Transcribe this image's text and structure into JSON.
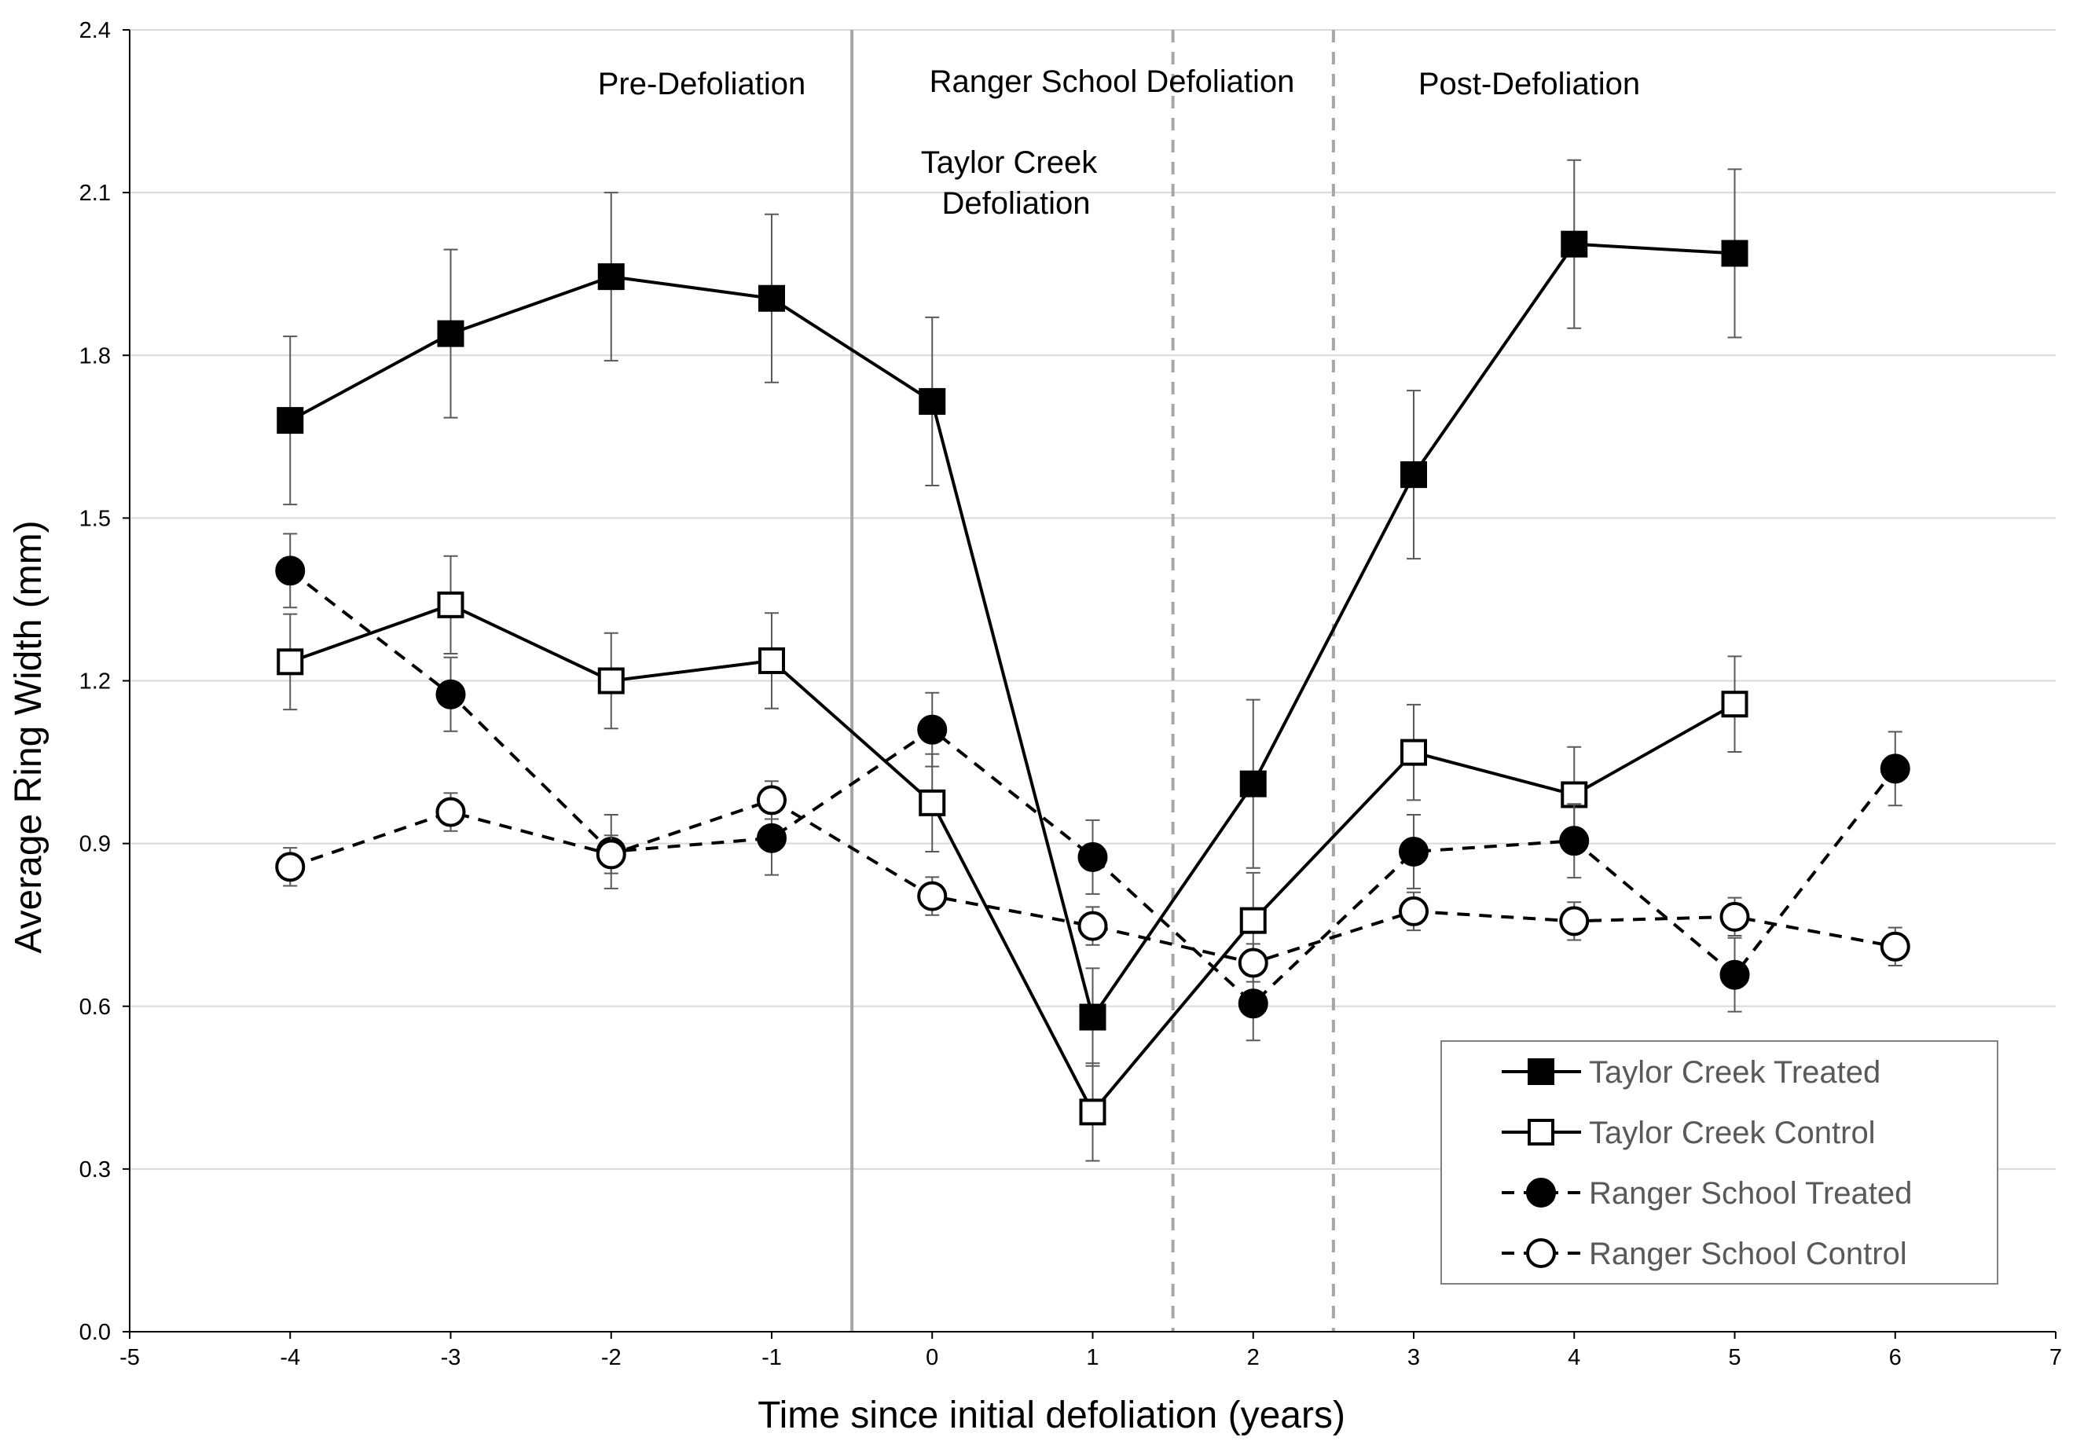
{
  "chart_data": {
    "type": "line",
    "xlabel": "Time since initial defoliation (years)",
    "ylabel": "Average Ring Width (mm)",
    "xlim": [
      -5,
      7
    ],
    "ylim": [
      0,
      2.4
    ],
    "xticks": [
      -5,
      -4,
      -3,
      -2,
      -1,
      0,
      1,
      2,
      3,
      4,
      5,
      6,
      7
    ],
    "yticks": [
      0.0,
      0.3,
      0.6,
      0.9,
      1.2,
      1.5,
      1.8,
      2.1,
      2.4
    ],
    "xtick_labels": [
      "-5",
      "-4",
      "-3",
      "-2",
      "-1",
      "0",
      "1",
      "2",
      "3",
      "4",
      "5",
      "6",
      "7"
    ],
    "ytick_labels": [
      "0.0",
      "0.3",
      "0.6",
      "0.9",
      "1.2",
      "1.5",
      "1.8",
      "2.1",
      "2.4"
    ],
    "grid": "horizontal",
    "legend_position": "bottom-right",
    "annotations": {
      "pre": "Pre-Defoliation",
      "ranger": "Ranger School Defoliation",
      "taylor_line1": "Taylor Creek",
      "taylor_line2": "Defoliation",
      "post": "Post-Defoliation"
    },
    "reference_lines": [
      {
        "x": -0.5,
        "style": "solid"
      },
      {
        "x": 1.5,
        "style": "dashed"
      },
      {
        "x": 2.5,
        "style": "dashed"
      }
    ],
    "series": [
      {
        "name": "Taylor Creek Treated",
        "line": "solid",
        "marker": "square",
        "fill": "filled",
        "x": [
          -4,
          -3,
          -2,
          -1,
          0,
          1,
          2,
          3,
          4,
          5
        ],
        "y": [
          1.68,
          1.84,
          1.945,
          1.905,
          1.715,
          0.58,
          1.01,
          1.58,
          2.005,
          1.988
        ],
        "err": [
          0.155,
          0.155,
          0.155,
          0.155,
          0.155,
          0.09,
          0.155,
          0.155,
          0.155,
          0.155
        ]
      },
      {
        "name": "Taylor Creek Control",
        "line": "solid",
        "marker": "square",
        "fill": "open",
        "x": [
          -4,
          -3,
          -2,
          -1,
          0,
          1,
          2,
          3,
          4,
          5
        ],
        "y": [
          1.235,
          1.34,
          1.2,
          1.237,
          0.975,
          0.405,
          0.758,
          1.068,
          0.99,
          1.157
        ],
        "err": [
          0.088,
          0.09,
          0.088,
          0.088,
          0.09,
          0.09,
          0.088,
          0.088,
          0.088,
          0.088
        ]
      },
      {
        "name": "Ranger School Treated",
        "line": "dashed",
        "marker": "circle",
        "fill": "filled",
        "x": [
          -4,
          -3,
          -2,
          -1,
          0,
          1,
          2,
          3,
          4,
          5,
          6
        ],
        "y": [
          1.403,
          1.175,
          0.885,
          0.91,
          1.11,
          0.875,
          0.605,
          0.885,
          0.905,
          0.658,
          1.038
        ],
        "err": [
          0.068,
          0.068,
          0.068,
          0.068,
          0.068,
          0.068,
          0.068,
          0.068,
          0.068,
          0.068,
          0.068
        ]
      },
      {
        "name": "Ranger School Control",
        "line": "dashed",
        "marker": "circle",
        "fill": "open",
        "x": [
          -4,
          -3,
          -2,
          -1,
          0,
          1,
          2,
          3,
          4,
          5,
          6
        ],
        "y": [
          0.857,
          0.958,
          0.88,
          0.98,
          0.803,
          0.748,
          0.68,
          0.775,
          0.757,
          0.765,
          0.71
        ],
        "err": [
          0.035,
          0.035,
          0.035,
          0.035,
          0.035,
          0.035,
          0.035,
          0.035,
          0.035,
          0.035,
          0.035
        ]
      }
    ]
  }
}
